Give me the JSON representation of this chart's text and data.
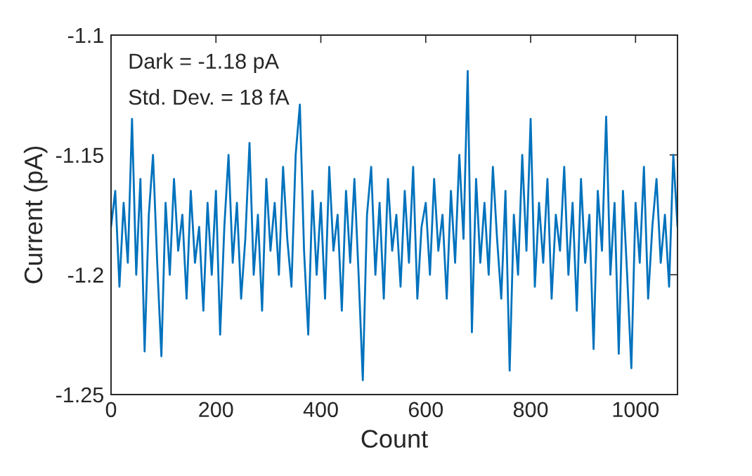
{
  "chart_data": {
    "type": "line",
    "xlabel": "Count",
    "ylabel": "Current (pA)",
    "annotations": [
      "Dark = -1.18 pA",
      "Std. Dev. = 18 fA"
    ],
    "xlim": [
      0,
      1080
    ],
    "xticks": [
      0,
      200,
      400,
      600,
      800,
      1000
    ],
    "ylim": [
      -1.25,
      -1.1
    ],
    "yticks": [
      -1.25,
      -1.2,
      -1.15,
      -1.1
    ],
    "grid": false,
    "legend": false,
    "marker": "none",
    "line_style": "solid",
    "series": [
      {
        "color": "#0072bd",
        "x": [
          0,
          8,
          16,
          24,
          32,
          40,
          48,
          56,
          64,
          72,
          80,
          88,
          96,
          104,
          112,
          120,
          128,
          136,
          144,
          152,
          160,
          168,
          176,
          184,
          192,
          200,
          208,
          216,
          224,
          232,
          240,
          248,
          256,
          264,
          272,
          280,
          288,
          296,
          304,
          312,
          320,
          328,
          336,
          344,
          352,
          360,
          368,
          376,
          384,
          392,
          400,
          408,
          416,
          424,
          432,
          440,
          448,
          456,
          464,
          472,
          480,
          488,
          496,
          504,
          512,
          520,
          528,
          536,
          544,
          552,
          560,
          568,
          576,
          584,
          592,
          600,
          608,
          616,
          624,
          632,
          640,
          648,
          656,
          664,
          672,
          680,
          688,
          696,
          704,
          712,
          720,
          728,
          736,
          744,
          752,
          760,
          768,
          776,
          784,
          792,
          800,
          808,
          816,
          824,
          832,
          840,
          848,
          856,
          864,
          872,
          880,
          888,
          896,
          904,
          912,
          920,
          928,
          936,
          944,
          952,
          960,
          968,
          976,
          984,
          992,
          1000,
          1008,
          1016,
          1024,
          1032,
          1040,
          1048,
          1056,
          1064,
          1072,
          1080
        ],
        "values": [
          -1.18,
          -1.165,
          -1.205,
          -1.17,
          -1.195,
          -1.135,
          -1.2,
          -1.16,
          -1.232,
          -1.175,
          -1.15,
          -1.195,
          -1.234,
          -1.17,
          -1.2,
          -1.16,
          -1.19,
          -1.175,
          -1.21,
          -1.165,
          -1.195,
          -1.18,
          -1.215,
          -1.17,
          -1.2,
          -1.165,
          -1.225,
          -1.18,
          -1.15,
          -1.195,
          -1.17,
          -1.21,
          -1.185,
          -1.145,
          -1.2,
          -1.175,
          -1.215,
          -1.16,
          -1.19,
          -1.17,
          -1.2,
          -1.155,
          -1.185,
          -1.205,
          -1.15,
          -1.129,
          -1.19,
          -1.225,
          -1.165,
          -1.2,
          -1.17,
          -1.21,
          -1.155,
          -1.19,
          -1.175,
          -1.215,
          -1.165,
          -1.195,
          -1.16,
          -1.2,
          -1.244,
          -1.175,
          -1.155,
          -1.2,
          -1.17,
          -1.21,
          -1.16,
          -1.19,
          -1.175,
          -1.205,
          -1.165,
          -1.195,
          -1.155,
          -1.21,
          -1.18,
          -1.17,
          -1.2,
          -1.16,
          -1.19,
          -1.175,
          -1.21,
          -1.165,
          -1.195,
          -1.15,
          -1.185,
          -1.115,
          -1.224,
          -1.16,
          -1.195,
          -1.17,
          -1.2,
          -1.155,
          -1.185,
          -1.21,
          -1.165,
          -1.24,
          -1.175,
          -1.2,
          -1.15,
          -1.19,
          -1.135,
          -1.205,
          -1.17,
          -1.195,
          -1.16,
          -1.21,
          -1.175,
          -1.19,
          -1.155,
          -1.2,
          -1.17,
          -1.215,
          -1.16,
          -1.195,
          -1.175,
          -1.231,
          -1.165,
          -1.19,
          -1.134,
          -1.2,
          -1.17,
          -1.233,
          -1.165,
          -1.2,
          -1.239,
          -1.17,
          -1.195,
          -1.155,
          -1.21,
          -1.18,
          -1.16,
          -1.195,
          -1.175,
          -1.205,
          -1.15,
          -1.18
        ]
      }
    ]
  }
}
